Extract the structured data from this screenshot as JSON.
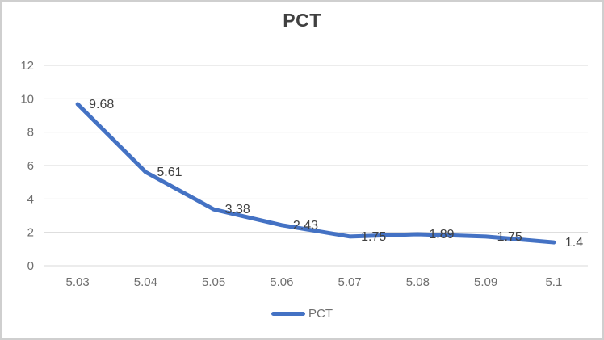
{
  "chart": {
    "title": "PCT",
    "legend": {
      "label": "PCT"
    }
  },
  "chart_data": {
    "type": "line",
    "title": "PCT",
    "categories": [
      "5.03",
      "5.04",
      "5.05",
      "5.06",
      "5.07",
      "5.08",
      "5.09",
      "5.1"
    ],
    "series": [
      {
        "name": "PCT",
        "values": [
          9.68,
          5.61,
          3.38,
          2.43,
          1.75,
          1.89,
          1.75,
          1.4
        ],
        "data_labels": [
          "9.68",
          "5.61",
          "3.38",
          "2.43",
          "1.75",
          "1.89",
          "1.75",
          "1.4"
        ]
      }
    ],
    "xlabel": "",
    "ylabel": "",
    "ylim": [
      0,
      12
    ],
    "yticks": [
      0,
      2,
      4,
      6,
      8,
      10,
      12
    ],
    "grid": true,
    "legend_position": "bottom"
  },
  "colors": {
    "line": "#4472C4",
    "grid": "#D9D9D9",
    "axis_text": "#6e6e6e",
    "data_label_text": "#404040",
    "title_text": "#404040",
    "border": "#cfcfcf",
    "background": "#ffffff"
  }
}
